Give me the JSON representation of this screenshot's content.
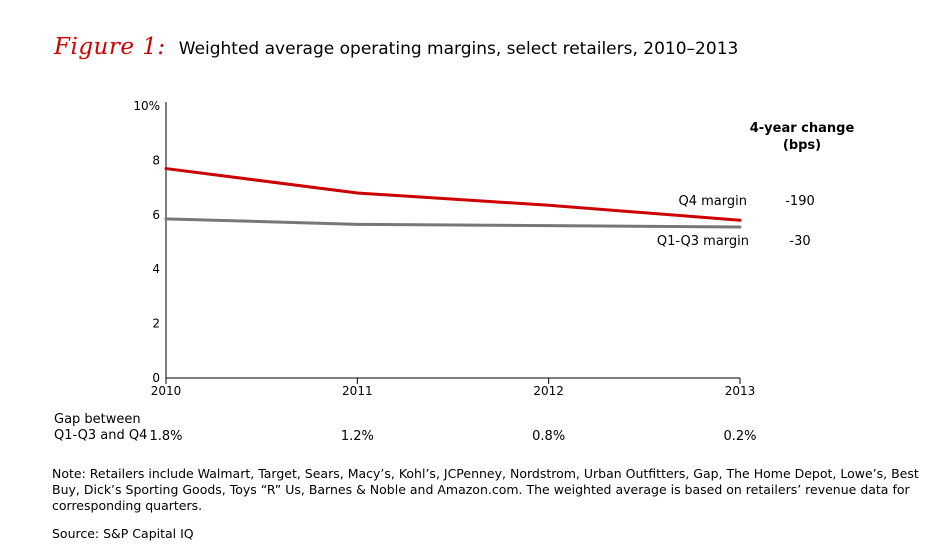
{
  "figure_label": "Figure 1:",
  "chart_data": {
    "type": "line",
    "title": "Weighted average operating margins, select retailers, 2010–2013",
    "x": [
      "2010",
      "2011",
      "2012",
      "2013"
    ],
    "series": [
      {
        "name": "Q4 margin",
        "values": [
          7.7,
          6.8,
          6.35,
          5.8
        ],
        "color": "#cc0000",
        "change": "-190"
      },
      {
        "name": "Q1-Q3 margin",
        "values": [
          5.85,
          5.65,
          5.6,
          5.55
        ],
        "color": "#777777",
        "change": "-30"
      }
    ],
    "yticks": [
      "0",
      "2",
      "4",
      "6",
      "8",
      "10%"
    ],
    "ylim": [
      0,
      10
    ],
    "xlabel": "",
    "ylabel": "",
    "change_header": [
      "4-year change",
      "(bps)"
    ],
    "gap": {
      "label": [
        "Gap between",
        "Q1-Q3 and Q4"
      ],
      "values": [
        "1.8%",
        "1.2%",
        "0.8%",
        "0.2%"
      ]
    }
  },
  "note": "Note: Retailers include Walmart, Target, Sears, Macy’s, Kohl’s, JCPenney, Nordstrom, Urban Outfitters, Gap, The Home Depot, Lowe’s, Best Buy, Dick’s Sporting Goods, Toys “R” Us, Barnes & Noble and Amazon.com. The weighted average is based on retailers’ revenue data for corresponding quarters.",
  "source": "Source: S&P Capital IQ"
}
